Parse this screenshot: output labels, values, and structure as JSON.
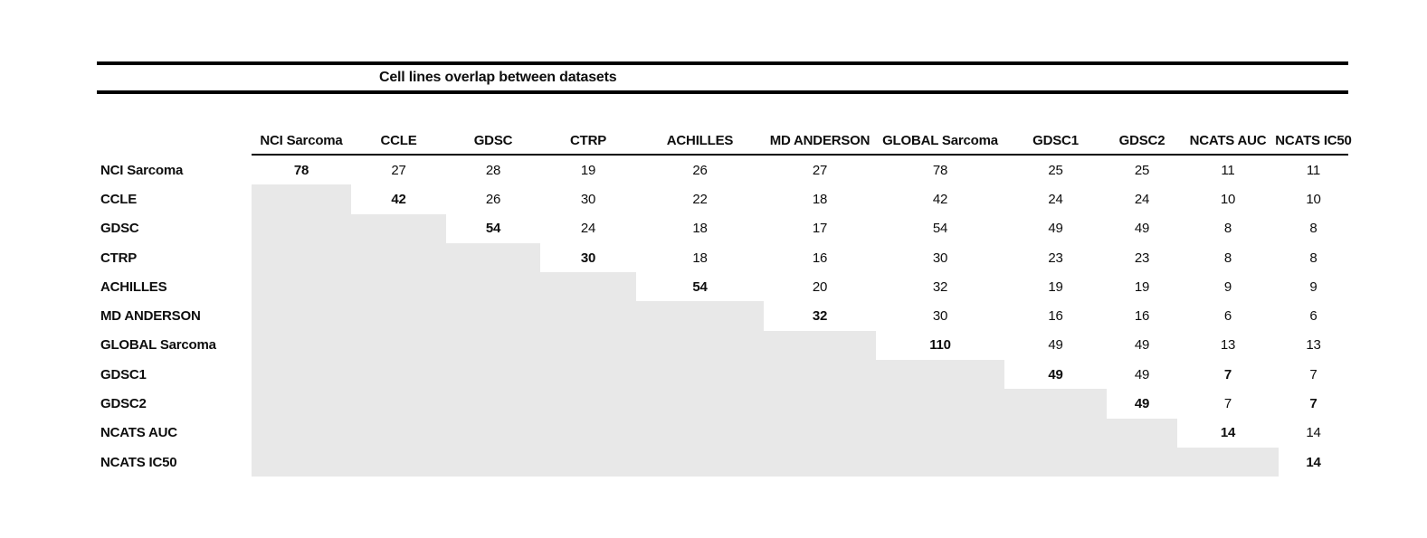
{
  "title": "Cell lines overlap between datasets",
  "colors": {
    "shade": "#e8e8e8",
    "rule": "#000000",
    "text": "#0e0e0e",
    "background": "#ffffff"
  },
  "chart_data": {
    "type": "table",
    "title": "Cell lines overlap between datasets",
    "row_headers": [
      "NCI Sarcoma",
      "CCLE",
      "GDSC",
      "CTRP",
      "ACHILLES",
      "MD ANDERSON",
      "GLOBAL Sarcoma",
      "GDSC1",
      "GDSC2",
      "NCATS AUC",
      "NCATS IC50"
    ],
    "col_headers": [
      "NCI Sarcoma",
      "CCLE",
      "GDSC",
      "CTRP",
      "ACHILLES",
      "MD ANDERSON",
      "GLOBAL Sarcoma",
      "GDSC1",
      "GDSC2",
      "NCATS AUC",
      "NCATS IC50"
    ],
    "cells": [
      [
        78,
        27,
        28,
        19,
        26,
        27,
        78,
        25,
        25,
        11,
        11
      ],
      [
        null,
        42,
        26,
        30,
        22,
        18,
        42,
        24,
        24,
        10,
        10
      ],
      [
        null,
        null,
        54,
        24,
        18,
        17,
        54,
        49,
        49,
        8,
        8
      ],
      [
        null,
        null,
        null,
        30,
        18,
        16,
        30,
        23,
        23,
        8,
        8
      ],
      [
        null,
        null,
        null,
        null,
        54,
        20,
        32,
        19,
        19,
        9,
        9
      ],
      [
        null,
        null,
        null,
        null,
        null,
        32,
        30,
        16,
        16,
        6,
        6
      ],
      [
        null,
        null,
        null,
        null,
        null,
        null,
        110,
        49,
        49,
        13,
        13
      ],
      [
        null,
        null,
        null,
        null,
        null,
        null,
        null,
        49,
        49,
        7,
        7
      ],
      [
        null,
        null,
        null,
        null,
        null,
        null,
        null,
        null,
        49,
        7,
        7
      ],
      [
        null,
        null,
        null,
        null,
        null,
        null,
        null,
        null,
        null,
        14,
        14
      ],
      [
        null,
        null,
        null,
        null,
        null,
        null,
        null,
        null,
        null,
        null,
        14
      ]
    ],
    "bold_cells": [
      [
        0,
        0
      ],
      [
        1,
        1
      ],
      [
        2,
        2
      ],
      [
        3,
        3
      ],
      [
        4,
        4
      ],
      [
        5,
        5
      ],
      [
        6,
        6
      ],
      [
        7,
        7
      ],
      [
        8,
        8
      ],
      [
        9,
        9
      ],
      [
        10,
        10
      ],
      [
        7,
        9
      ],
      [
        8,
        10
      ]
    ],
    "shaded": "lower-triangle",
    "shade_color": "#e8e8e8",
    "grid": "off",
    "legend": "none"
  }
}
